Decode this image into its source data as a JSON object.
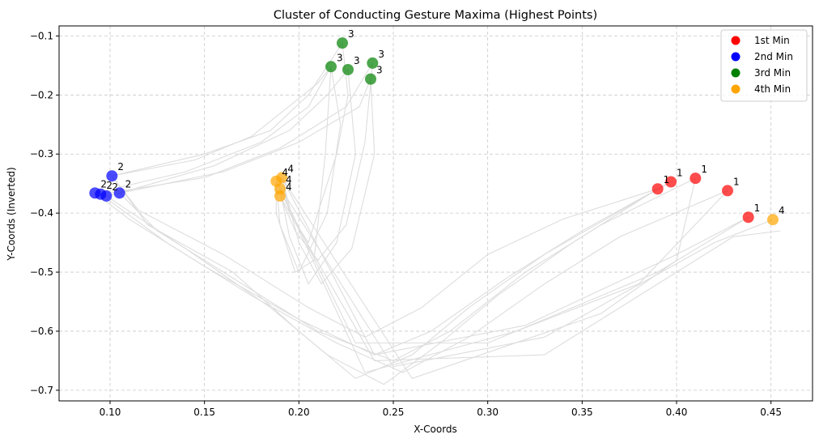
{
  "chart_data": {
    "type": "scatter",
    "title": "Cluster of Conducting Gesture Maxima (Highest Points)",
    "xlabel": "X-Coords",
    "ylabel": "Y-Coords (Inverted)",
    "xlim": [
      0.073,
      0.472
    ],
    "ylim": [
      -0.718,
      -0.083
    ],
    "xticks": [
      0.1,
      0.15,
      0.2,
      0.25,
      0.3,
      0.35,
      0.4,
      0.45
    ],
    "xtick_labels": [
      "0.10",
      "0.15",
      "0.20",
      "0.25",
      "0.30",
      "0.35",
      "0.40",
      "0.45"
    ],
    "yticks": [
      -0.1,
      -0.2,
      -0.3,
      -0.4,
      -0.5,
      -0.6,
      -0.7
    ],
    "ytick_labels": [
      "−0.1",
      "−0.2",
      "−0.3",
      "−0.4",
      "−0.5",
      "−0.6",
      "−0.7"
    ],
    "grid": true,
    "legend_position": "top-right",
    "legend": [
      {
        "label": "1st Min",
        "color": "#ff0000"
      },
      {
        "label": "2nd Min",
        "color": "#0000ff"
      },
      {
        "label": "3rd Min",
        "color": "#008000"
      },
      {
        "label": "4th Min",
        "color": "#ffa500"
      }
    ],
    "point_colors": {
      "1": "#ff0000",
      "2": "#0000ff",
      "3": "#008000",
      "4": "#ffa500"
    },
    "trajectory_color": "#dddddd",
    "points": [
      {
        "x": 0.39,
        "y": -0.359,
        "label": "1"
      },
      {
        "x": 0.397,
        "y": -0.347,
        "label": "1"
      },
      {
        "x": 0.41,
        "y": -0.341,
        "label": "1"
      },
      {
        "x": 0.427,
        "y": -0.362,
        "label": "1"
      },
      {
        "x": 0.438,
        "y": -0.407,
        "label": "1"
      },
      {
        "x": 0.101,
        "y": -0.337,
        "label": "2"
      },
      {
        "x": 0.105,
        "y": -0.366,
        "label": "2"
      },
      {
        "x": 0.092,
        "y": -0.366,
        "label": "2"
      },
      {
        "x": 0.095,
        "y": -0.368,
        "label": "2"
      },
      {
        "x": 0.098,
        "y": -0.371,
        "label": "2"
      },
      {
        "x": 0.223,
        "y": -0.112,
        "label": "3"
      },
      {
        "x": 0.239,
        "y": -0.146,
        "label": "3"
      },
      {
        "x": 0.217,
        "y": -0.152,
        "label": "3"
      },
      {
        "x": 0.226,
        "y": -0.157,
        "label": "3"
      },
      {
        "x": 0.238,
        "y": -0.173,
        "label": "3"
      },
      {
        "x": 0.191,
        "y": -0.34,
        "label": "4"
      },
      {
        "x": 0.188,
        "y": -0.346,
        "label": "4"
      },
      {
        "x": 0.19,
        "y": -0.359,
        "label": "4"
      },
      {
        "x": 0.19,
        "y": -0.371,
        "label": "4"
      },
      {
        "x": 0.451,
        "y": -0.411,
        "label": "4"
      }
    ],
    "trajectories": [
      [
        [
          0.39,
          -0.359
        ],
        [
          0.34,
          -0.41
        ],
        [
          0.3,
          -0.47
        ],
        [
          0.265,
          -0.56
        ],
        [
          0.235,
          -0.61
        ],
        [
          0.205,
          -0.56
        ],
        [
          0.16,
          -0.47
        ],
        [
          0.115,
          -0.395
        ],
        [
          0.101,
          -0.337
        ],
        [
          0.15,
          -0.3
        ],
        [
          0.185,
          -0.26
        ],
        [
          0.205,
          -0.2
        ],
        [
          0.223,
          -0.112
        ],
        [
          0.226,
          -0.2
        ],
        [
          0.22,
          -0.3
        ],
        [
          0.205,
          -0.45
        ],
        [
          0.195,
          -0.4
        ],
        [
          0.191,
          -0.34
        ],
        [
          0.24,
          -0.64
        ],
        [
          0.32,
          -0.59
        ],
        [
          0.4,
          -0.47
        ],
        [
          0.438,
          -0.407
        ]
      ],
      [
        [
          0.397,
          -0.347
        ],
        [
          0.35,
          -0.43
        ],
        [
          0.31,
          -0.51
        ],
        [
          0.27,
          -0.6
        ],
        [
          0.24,
          -0.64
        ],
        [
          0.2,
          -0.58
        ],
        [
          0.15,
          -0.49
        ],
        [
          0.11,
          -0.41
        ],
        [
          0.092,
          -0.366
        ],
        [
          0.14,
          -0.33
        ],
        [
          0.18,
          -0.28
        ],
        [
          0.205,
          -0.22
        ],
        [
          0.217,
          -0.152
        ],
        [
          0.222,
          -0.25
        ],
        [
          0.215,
          -0.4
        ],
        [
          0.2,
          -0.5
        ],
        [
          0.19,
          -0.42
        ],
        [
          0.188,
          -0.346
        ],
        [
          0.25,
          -0.66
        ],
        [
          0.33,
          -0.61
        ],
        [
          0.42,
          -0.45
        ],
        [
          0.451,
          -0.411
        ]
      ],
      [
        [
          0.41,
          -0.341
        ],
        [
          0.36,
          -0.42
        ],
        [
          0.32,
          -0.5
        ],
        [
          0.28,
          -0.6
        ],
        [
          0.25,
          -0.65
        ],
        [
          0.21,
          -0.6
        ],
        [
          0.17,
          -0.52
        ],
        [
          0.125,
          -0.43
        ],
        [
          0.105,
          -0.366
        ],
        [
          0.155,
          -0.32
        ],
        [
          0.195,
          -0.26
        ],
        [
          0.215,
          -0.2
        ],
        [
          0.226,
          -0.157
        ],
        [
          0.23,
          -0.3
        ],
        [
          0.22,
          -0.45
        ],
        [
          0.205,
          -0.52
        ],
        [
          0.195,
          -0.44
        ],
        [
          0.19,
          -0.359
        ],
        [
          0.23,
          -0.62
        ],
        [
          0.3,
          -0.62
        ],
        [
          0.39,
          -0.5
        ],
        [
          0.438,
          -0.407
        ]
      ],
      [
        [
          0.427,
          -0.362
        ],
        [
          0.37,
          -0.44
        ],
        [
          0.33,
          -0.52
        ],
        [
          0.29,
          -0.61
        ],
        [
          0.255,
          -0.67
        ],
        [
          0.22,
          -0.62
        ],
        [
          0.175,
          -0.54
        ],
        [
          0.13,
          -0.45
        ],
        [
          0.095,
          -0.368
        ],
        [
          0.15,
          -0.34
        ],
        [
          0.19,
          -0.29
        ],
        [
          0.225,
          -0.22
        ],
        [
          0.239,
          -0.146
        ],
        [
          0.235,
          -0.28
        ],
        [
          0.225,
          -0.42
        ],
        [
          0.21,
          -0.48
        ],
        [
          0.198,
          -0.43
        ],
        [
          0.19,
          -0.371
        ],
        [
          0.24,
          -0.65
        ],
        [
          0.33,
          -0.64
        ],
        [
          0.43,
          -0.44
        ],
        [
          0.455,
          -0.43
        ]
      ],
      [
        [
          0.39,
          -0.359
        ],
        [
          0.345,
          -0.45
        ],
        [
          0.305,
          -0.54
        ],
        [
          0.275,
          -0.62
        ],
        [
          0.245,
          -0.69
        ],
        [
          0.215,
          -0.64
        ],
        [
          0.185,
          -0.56
        ],
        [
          0.14,
          -0.46
        ],
        [
          0.098,
          -0.371
        ],
        [
          0.16,
          -0.33
        ],
        [
          0.2,
          -0.28
        ],
        [
          0.232,
          -0.22
        ],
        [
          0.238,
          -0.173
        ],
        [
          0.24,
          -0.3
        ],
        [
          0.228,
          -0.46
        ],
        [
          0.212,
          -0.52
        ],
        [
          0.2,
          -0.45
        ],
        [
          0.191,
          -0.34
        ],
        [
          0.26,
          -0.68
        ],
        [
          0.36,
          -0.57
        ],
        [
          0.4,
          -0.48
        ],
        [
          0.41,
          -0.341
        ]
      ],
      [
        [
          0.397,
          -0.347
        ],
        [
          0.33,
          -0.47
        ],
        [
          0.29,
          -0.56
        ],
        [
          0.26,
          -0.64
        ],
        [
          0.23,
          -0.68
        ],
        [
          0.2,
          -0.6
        ],
        [
          0.165,
          -0.5
        ],
        [
          0.12,
          -0.42
        ],
        [
          0.101,
          -0.337
        ],
        [
          0.145,
          -0.31
        ],
        [
          0.175,
          -0.27
        ],
        [
          0.21,
          -0.18
        ],
        [
          0.217,
          -0.152
        ],
        [
          0.214,
          -0.3
        ],
        [
          0.208,
          -0.48
        ],
        [
          0.198,
          -0.5
        ],
        [
          0.188,
          -0.4
        ],
        [
          0.188,
          -0.346
        ],
        [
          0.235,
          -0.67
        ],
        [
          0.315,
          -0.6
        ],
        [
          0.38,
          -0.52
        ],
        [
          0.427,
          -0.362
        ]
      ]
    ]
  }
}
